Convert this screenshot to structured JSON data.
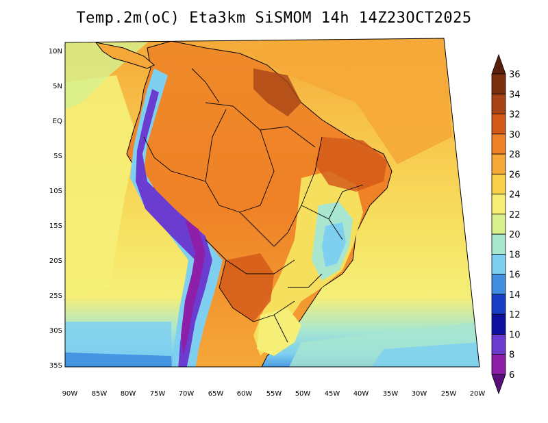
{
  "title": "Temp.2m(oC) Eta3km SiSMOM 14h 14Z23OCT2025",
  "lat_labels": [
    "10N",
    "5N",
    "EQ",
    "5S",
    "10S",
    "15S",
    "20S",
    "25S",
    "30S",
    "35S"
  ],
  "lon_labels": [
    "90W",
    "85W",
    "80W",
    "75W",
    "70W",
    "65W",
    "60W",
    "55W",
    "50W",
    "45W",
    "40W",
    "35W",
    "30W",
    "25W",
    "20W"
  ],
  "colorbar": {
    "values": [
      "36",
      "34",
      "32",
      "30",
      "28",
      "26",
      "24",
      "22",
      "20",
      "18",
      "16",
      "14",
      "12",
      "10",
      "8",
      "6"
    ],
    "colors": [
      "#5a1f0a",
      "#7b3010",
      "#a84416",
      "#d45a1a",
      "#ef8126",
      "#f5a838",
      "#f7cf4a",
      "#f5ef78",
      "#d7f08c",
      "#a8e6cf",
      "#7fd0f0",
      "#3f8ee0",
      "#1b3fc4",
      "#1111a0",
      "#6a3dd0",
      "#8e1fa8",
      "#5a0f7a"
    ]
  },
  "colors": {
    "ocean_north": "#f7cf4a",
    "ocean_warm": "#f5a838",
    "ocean_cool": "#f5ef78",
    "ocean_cold": "#a8e6cf",
    "land_hot": "#ef8126",
    "land_very_hot": "#d45a1a",
    "andes": "#6a3dd0",
    "border": "#000000"
  }
}
